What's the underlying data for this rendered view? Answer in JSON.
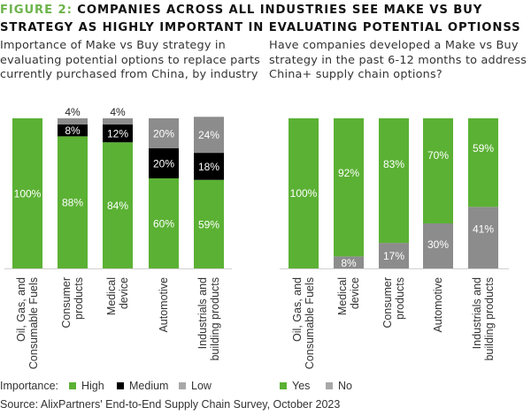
{
  "figure": {
    "label": "FIGURE 2:",
    "title_line1_rest": " COMPANIES ACROSS ALL INDUSTRIES SEE MAKE VS BUY",
    "title_line2": "STRATEGY AS HIGHLY IMPORTANT IN EVALUATING POTENTIAL OPTIONSS"
  },
  "colors": {
    "high": "#5bb134",
    "medium": "#000000",
    "low": "#8c8c8c",
    "yes": "#5bb134",
    "no": "#8c8c8c",
    "legend_low": "#a8a8a8",
    "legend_no": "#a8a8a8",
    "axis": "#d0d0d0"
  },
  "legend": {
    "prefix": "Importance:",
    "high": "High",
    "medium": "Medium",
    "low": "Low",
    "yes": "Yes",
    "no": "No"
  },
  "source": "Source: AlixPartners' End-to-End Supply Chain Survey, October 2023",
  "chart_data": [
    {
      "type": "bar",
      "stacked": true,
      "title": "Importance of Make vs Buy strategy in evaluating potential options to replace parts currently purchased from China, by industry",
      "categories": [
        [
          "Oil, Gas, and",
          "Consumable Fuels"
        ],
        [
          "Consumer",
          "products"
        ],
        [
          "Medical",
          "device"
        ],
        [
          "Automotive"
        ],
        [
          "Industrials and",
          "building products"
        ]
      ],
      "series": [
        {
          "name": "High",
          "color_key": "high",
          "values": [
            100,
            88,
            84,
            60,
            59
          ],
          "labels": [
            "100%",
            "88%",
            "84%",
            "60%",
            "59%"
          ]
        },
        {
          "name": "Medium",
          "color_key": "medium",
          "values": [
            0,
            8,
            12,
            20,
            18
          ],
          "labels": [
            "",
            "8%",
            "12%",
            "20%",
            "18%"
          ]
        },
        {
          "name": "Low",
          "color_key": "low",
          "values": [
            0,
            4,
            4,
            20,
            24
          ],
          "labels": [
            "",
            "4%",
            "4%",
            "20%",
            "24%"
          ]
        }
      ],
      "ylim": [
        0,
        100
      ],
      "xlabel": "",
      "ylabel": "",
      "grid": false,
      "legend": "bottom-left"
    },
    {
      "type": "bar",
      "stacked": true,
      "title": "Have companies developed a Make vs Buy strategy in the past 6-12 months to address China+ supply chain options?",
      "categories": [
        [
          "Oil, Gas, and",
          "Consumable Fuels"
        ],
        [
          "Medical",
          "device"
        ],
        [
          "Consumer",
          "products"
        ],
        [
          "Automotive"
        ],
        [
          "Industrials and",
          "building products"
        ]
      ],
      "series": [
        {
          "name": "No",
          "color_key": "no",
          "values": [
            0,
            8,
            17,
            30,
            41
          ],
          "labels": [
            "",
            "8%",
            "17%",
            "30%",
            "41%"
          ]
        },
        {
          "name": "Yes",
          "color_key": "yes",
          "values": [
            100,
            92,
            83,
            70,
            59
          ],
          "labels": [
            "100%",
            "92%",
            "83%",
            "70%",
            "59%"
          ]
        }
      ],
      "ylim": [
        0,
        100
      ],
      "xlabel": "",
      "ylabel": "",
      "grid": false,
      "legend": "bottom"
    }
  ]
}
